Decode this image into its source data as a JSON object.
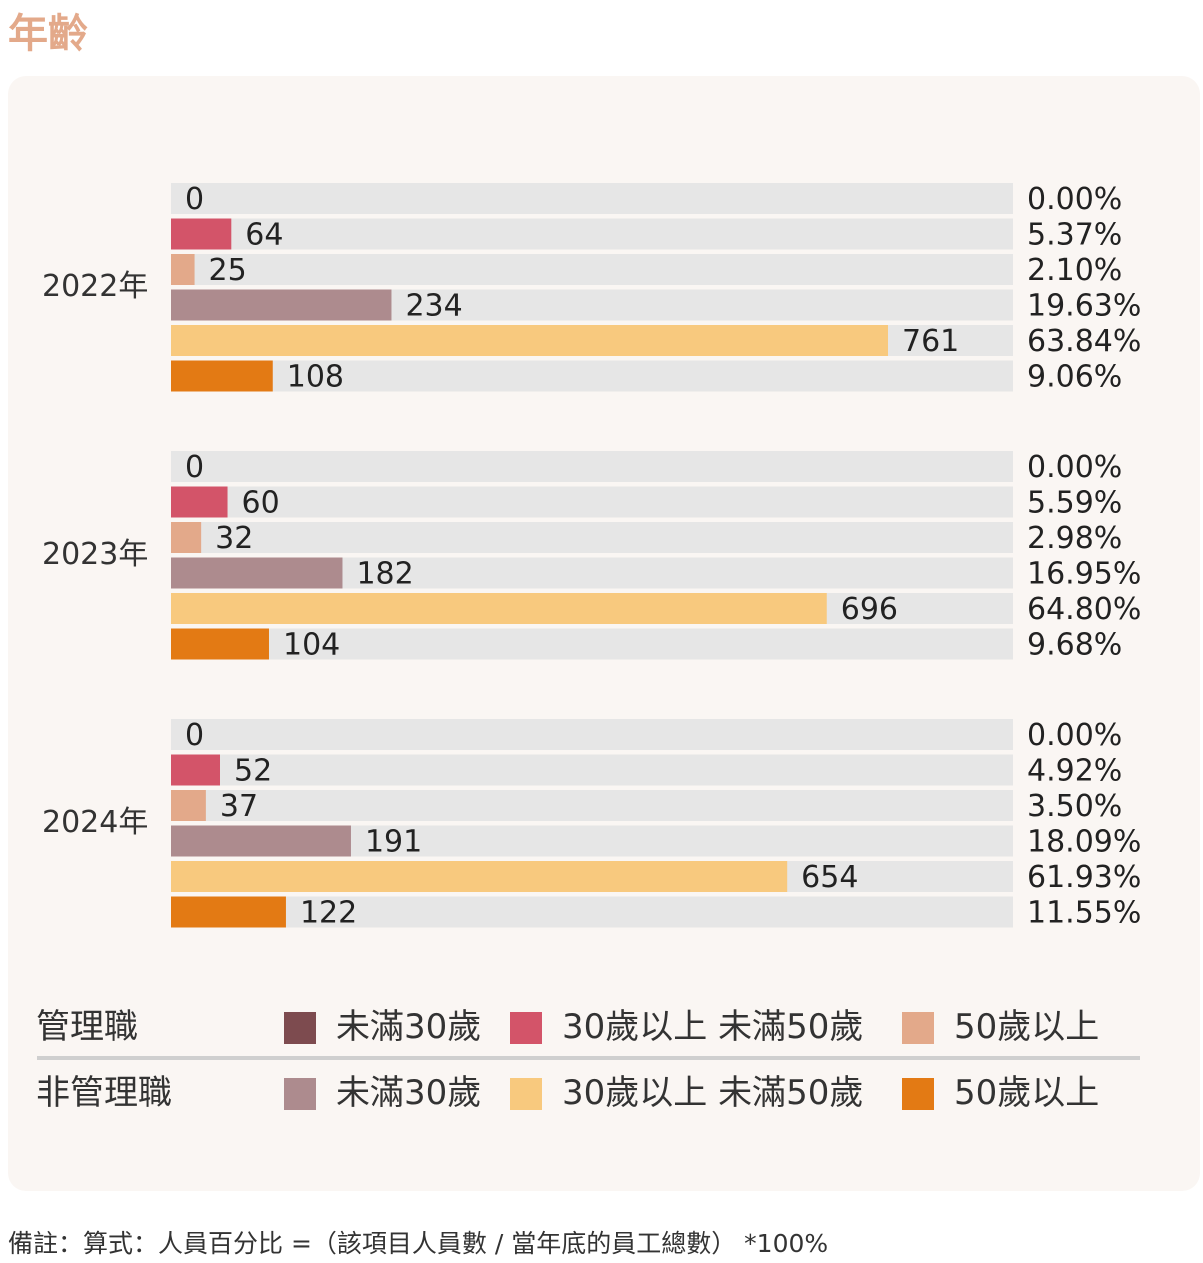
{
  "title": "年齡",
  "colors": {
    "mgmt_under30": "#7d4b4f",
    "mgmt_30to50": "#d35469",
    "mgmt_over50": "#e3a98a",
    "non_under30": "#ad8b8e",
    "non_30to50": "#f8c97e",
    "non_over50": "#e37a14",
    "track": "#e6e6e6"
  },
  "chart_data": {
    "type": "bar",
    "orientation": "horizontal",
    "xlim": [
      0,
      800
    ],
    "series_keys": [
      "mgmt_under30",
      "mgmt_30to50",
      "mgmt_over50",
      "non_under30",
      "non_30to50",
      "non_over50"
    ],
    "groups": [
      {
        "label": "2022年",
        "values": [
          0,
          64,
          25,
          234,
          761,
          108
        ],
        "percents": [
          "0.00%",
          "5.37%",
          "2.10%",
          "19.63%",
          "63.84%",
          "9.06%"
        ]
      },
      {
        "label": "2023年",
        "values": [
          0,
          60,
          32,
          182,
          696,
          104
        ],
        "percents": [
          "0.00%",
          "5.59%",
          "2.98%",
          "16.95%",
          "64.80%",
          "9.68%"
        ]
      },
      {
        "label": "2024年",
        "values": [
          0,
          52,
          37,
          191,
          654,
          122
        ],
        "percents": [
          "0.00%",
          "4.92%",
          "3.50%",
          "18.09%",
          "61.93%",
          "11.55%"
        ]
      }
    ]
  },
  "legend": {
    "management": {
      "title": "管理職",
      "items": [
        {
          "label": "未滿30歲",
          "color_key": "mgmt_under30"
        },
        {
          "label": "30歲以上 未滿50歲",
          "color_key": "mgmt_30to50"
        },
        {
          "label": "50歲以上",
          "color_key": "mgmt_over50"
        }
      ]
    },
    "non_management": {
      "title": "非管理職",
      "items": [
        {
          "label": "未滿30歲",
          "color_key": "non_under30"
        },
        {
          "label": "30歲以上 未滿50歲",
          "color_key": "non_30to50"
        },
        {
          "label": "50歲以上",
          "color_key": "non_over50"
        }
      ]
    }
  },
  "footnote": "備註：算式：人員百分比 =（該項目人員數 / 當年底的員工總數） *100%"
}
